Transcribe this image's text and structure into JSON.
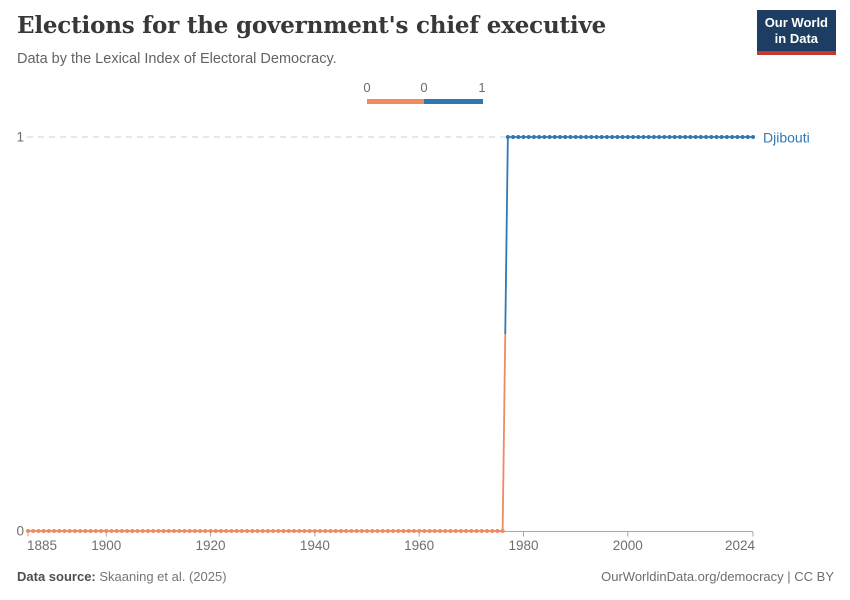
{
  "header": {
    "title": "Elections for the government's chief executive",
    "subtitle": "Data by the Lexical Index of Electoral Democracy."
  },
  "logo": {
    "line1": "Our World",
    "line2": "in Data"
  },
  "legend": {
    "tick_labels": [
      "0",
      "0",
      "1"
    ]
  },
  "chart_data": {
    "type": "line",
    "title": "Elections for the government's chief executive",
    "subtitle": "Data by the Lexical Index of Electoral Democracy.",
    "entity": "Djibouti",
    "entity_color": "#3178b3",
    "x_range": [
      1885,
      2024
    ],
    "y_range": [
      0,
      1
    ],
    "x_ticks": [
      1885,
      1900,
      1920,
      1940,
      1960,
      1980,
      2000,
      2024
    ],
    "y_ticks": [
      0,
      1
    ],
    "gridlines_at": [
      1
    ],
    "grid_style": "dashed",
    "legend_position": "top-center",
    "marker": "yearly-dots",
    "series": [
      {
        "name": "Djibouti (value 0)",
        "color": "#ef8a62",
        "start_year": 1885,
        "end_year": 1976,
        "value": 0
      },
      {
        "name": "Djibouti (value 1)",
        "color": "#3178b3",
        "start_year": 1977,
        "end_year": 2024,
        "value": 1
      }
    ],
    "step": {
      "from_year": 1976,
      "to_year": 1977,
      "from_value": 0,
      "to_value": 1
    }
  },
  "footer": {
    "source_label": "Data source:",
    "source_value": " Skaaning et al. (2025)",
    "rights": "OurWorldinData.org/democracy | CC BY"
  },
  "colors": {
    "value0": "#ef8a62",
    "value1": "#3178b3",
    "logo_bg": "#1d3d63",
    "logo_stripe": "#c5382f",
    "axis": "#a8a8a8",
    "gridline": "#d0d0d0",
    "tick_text": "#6f6f6f"
  }
}
